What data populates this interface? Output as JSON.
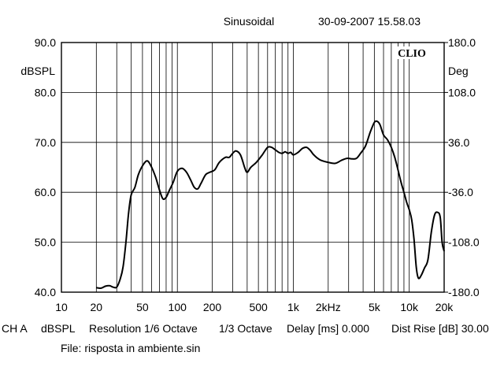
{
  "chart_data": {
    "type": "line",
    "header": {
      "mode": "Sinusoidal",
      "timestamp": "30-09-2007 15.58.03"
    },
    "brand": "CLIO",
    "x_axis": {
      "scale": "log",
      "range": [
        10,
        20000
      ],
      "unit": "Hz",
      "tick_labels": [
        {
          "v": 10,
          "t": "10"
        },
        {
          "v": 20,
          "t": "20"
        },
        {
          "v": 50,
          "t": "50"
        },
        {
          "v": 100,
          "t": "100"
        },
        {
          "v": 200,
          "t": "200"
        },
        {
          "v": 500,
          "t": "500"
        },
        {
          "v": 1000,
          "t": "1k"
        },
        {
          "v": 2000,
          "t": "2kHz"
        },
        {
          "v": 5000,
          "t": "5k"
        },
        {
          "v": 10000,
          "t": "10k"
        },
        {
          "v": 20000,
          "t": "20k"
        }
      ]
    },
    "y_left": {
      "label": "dBSPL",
      "range": [
        40,
        90
      ],
      "ticks": [
        {
          "v": 90,
          "t": "90.0"
        },
        {
          "v": 80,
          "t": "80.0"
        },
        {
          "v": 70,
          "t": "70.0"
        },
        {
          "v": 60,
          "t": "60.0"
        },
        {
          "v": 50,
          "t": "50.0"
        },
        {
          "v": 40,
          "t": "40.0"
        }
      ]
    },
    "y_right": {
      "label": "Deg",
      "range": [
        -180,
        180
      ],
      "ticks": [
        {
          "v": 180,
          "t": "180.0"
        },
        {
          "v": 108,
          "t": "108.0"
        },
        {
          "v": 36,
          "t": "36.0"
        },
        {
          "v": -36,
          "t": "-36.0"
        },
        {
          "v": -108,
          "t": "-108.0"
        },
        {
          "v": -180,
          "t": "-180.0"
        }
      ]
    },
    "grid": true,
    "series": [
      {
        "color": "#000000",
        "points": [
          [
            20,
            40.9
          ],
          [
            22,
            40.8
          ],
          [
            24,
            41.2
          ],
          [
            26,
            41.3
          ],
          [
            28,
            41.0
          ],
          [
            30,
            41.0
          ],
          [
            32,
            42.5
          ],
          [
            34,
            45.0
          ],
          [
            36,
            50.0
          ],
          [
            38,
            56.0
          ],
          [
            40,
            59.5
          ],
          [
            43,
            61.0
          ],
          [
            46,
            63.5
          ],
          [
            50,
            65.3
          ],
          [
            55,
            66.3
          ],
          [
            60,
            65.0
          ],
          [
            65,
            63.0
          ],
          [
            70,
            60.5
          ],
          [
            75,
            58.7
          ],
          [
            80,
            59.0
          ],
          [
            85,
            60.3
          ],
          [
            92,
            62.0
          ],
          [
            100,
            64.2
          ],
          [
            110,
            64.8
          ],
          [
            120,
            64.0
          ],
          [
            130,
            62.5
          ],
          [
            140,
            61.0
          ],
          [
            150,
            60.7
          ],
          [
            160,
            61.8
          ],
          [
            175,
            63.5
          ],
          [
            190,
            64.0
          ],
          [
            210,
            64.5
          ],
          [
            230,
            66.0
          ],
          [
            260,
            67.0
          ],
          [
            280,
            67.0
          ],
          [
            300,
            67.8
          ],
          [
            320,
            68.3
          ],
          [
            350,
            67.5
          ],
          [
            380,
            65.0
          ],
          [
            400,
            64.0
          ],
          [
            430,
            65.0
          ],
          [
            480,
            66.0
          ],
          [
            540,
            67.5
          ],
          [
            600,
            69.0
          ],
          [
            650,
            69.0
          ],
          [
            700,
            68.5
          ],
          [
            750,
            68.0
          ],
          [
            800,
            67.8
          ],
          [
            850,
            68.1
          ],
          [
            900,
            67.8
          ],
          [
            950,
            68.0
          ],
          [
            1000,
            67.5
          ],
          [
            1100,
            68.0
          ],
          [
            1200,
            68.8
          ],
          [
            1300,
            69.0
          ],
          [
            1400,
            68.4
          ],
          [
            1500,
            67.5
          ],
          [
            1700,
            66.5
          ],
          [
            2000,
            66.0
          ],
          [
            2300,
            65.8
          ],
          [
            2600,
            66.4
          ],
          [
            2900,
            66.8
          ],
          [
            3200,
            66.7
          ],
          [
            3500,
            66.8
          ],
          [
            3800,
            67.8
          ],
          [
            4200,
            69.3
          ],
          [
            4600,
            72.0
          ],
          [
            5000,
            74.0
          ],
          [
            5300,
            74.2
          ],
          [
            5600,
            73.5
          ],
          [
            6000,
            71.5
          ],
          [
            6500,
            70.5
          ],
          [
            7000,
            69.0
          ],
          [
            7500,
            67.0
          ],
          [
            8000,
            64.5
          ],
          [
            8500,
            62.0
          ],
          [
            9000,
            60.0
          ],
          [
            9500,
            58.0
          ],
          [
            10000,
            56.5
          ],
          [
            10500,
            54.5
          ],
          [
            11000,
            50.5
          ],
          [
            11500,
            45.0
          ],
          [
            12000,
            42.8
          ],
          [
            12700,
            43.4
          ],
          [
            13500,
            44.8
          ],
          [
            14500,
            46.5
          ],
          [
            15500,
            52.0
          ],
          [
            16500,
            55.4
          ],
          [
            17500,
            56.0
          ],
          [
            18500,
            55.0
          ],
          [
            19200,
            50.0
          ],
          [
            20000,
            48.2
          ]
        ]
      }
    ]
  },
  "footer": {
    "line1": [
      {
        "t": "CH A"
      },
      {
        "t": "dBSPL"
      },
      {
        "t": "Resolution 1/6 Octave"
      },
      {
        "t": "1/3 Octave"
      },
      {
        "t": "Delay [ms] 0.000"
      },
      {
        "t": "Dist Rise [dB] 30.00"
      }
    ],
    "file": "File: risposta in ambiente.sin"
  }
}
